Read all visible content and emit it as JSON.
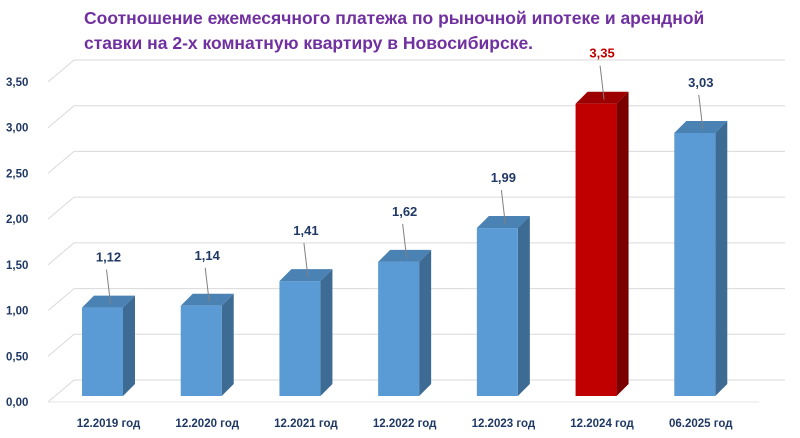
{
  "chart_data": {
    "type": "bar",
    "title": "Соотношение ежемесячного платежа по рыночной ипотеке и арендной ставки на 2-х комнатную квартиру в Новосибирске.",
    "xlabel": "",
    "ylabel": "",
    "categories": [
      "12.2019 год",
      "12.2020 год",
      "12.2021 год",
      "12.2022 год",
      "12.2023 год",
      "12.2024 год",
      "06.2025 год"
    ],
    "values": [
      1.12,
      1.14,
      1.41,
      1.62,
      1.99,
      3.35,
      3.03
    ],
    "value_labels": [
      "1,12",
      "1,14",
      "1,41",
      "1,62",
      "1,99",
      "3,35",
      "3,03"
    ],
    "ylim": [
      0,
      3.5
    ],
    "yticks": [
      0,
      0.5,
      1.0,
      1.5,
      2.0,
      2.5,
      3.0,
      3.5
    ],
    "ytick_labels": [
      "0,00",
      "0,50",
      "1,00",
      "1,50",
      "2,00",
      "2,50",
      "3,00",
      "3,50"
    ],
    "grid": true,
    "legend": "none",
    "style": "3d-column",
    "colors": {
      "bar": "#5b9bd5",
      "bar_side": "#3d6b93",
      "bar_top": "#4a82b4",
      "highlight_bar": "#c00000",
      "highlight_side": "#7a0000",
      "highlight_top": "#9c0000",
      "label": "#1f3864",
      "highlight_label": "#c00000",
      "title": "#7030a0",
      "grid": "#d9d9d9"
    },
    "highlight_index": 5
  }
}
